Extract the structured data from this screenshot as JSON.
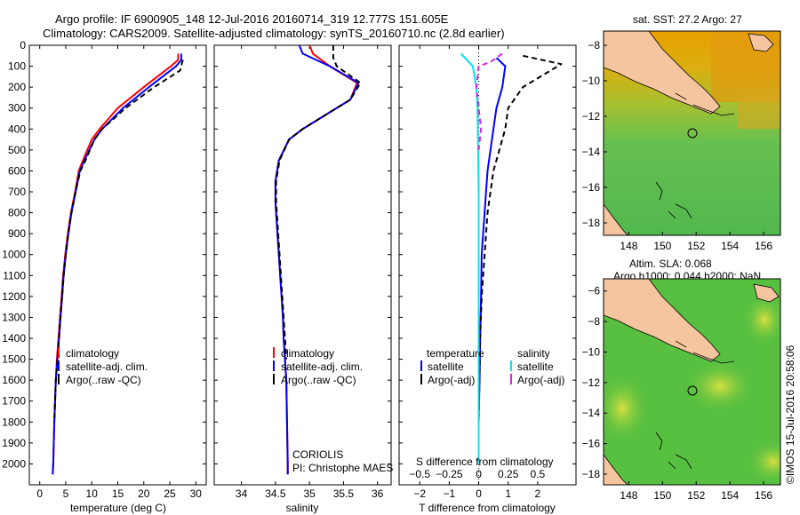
{
  "header": {
    "line1": "Argo profile: IF 6900905_148 12-Jul-2016 20160714_319 12.777S 151.605E",
    "line2": "Climatology: CARS2009. Satellite-adjusted climatology: synTS_20160710.nc (2.8d earlier)"
  },
  "colors": {
    "climatology": "#ff0000",
    "satellite": "#0000ff",
    "argo": "#000000",
    "sal_satellite": "#00e5ee",
    "sal_argo": "#e020e0",
    "land": "#f5c59f"
  },
  "side_labels": {
    "sst": "sat. SST: 27.2 Argo: 27",
    "sla_line1": "Altim. SLA: 0.068",
    "sla_line2": "Argo h1000: 0.044 h2000: NaN",
    "credit": "©IMOS 15-Jul-2016 20:58:06"
  },
  "float_info": {
    "centre": "CORIOLIS",
    "pi": "PI: Christophe MAES"
  },
  "chart_data": [
    {
      "type": "line",
      "xlabel": "temperature (deg C)",
      "ylabel": "",
      "xlim": [
        -2,
        32
      ],
      "ylim": [
        2100,
        0
      ],
      "xticks": [
        0,
        5,
        10,
        15,
        20,
        25,
        30
      ],
      "yticks": [
        0,
        100,
        200,
        300,
        400,
        500,
        600,
        700,
        800,
        900,
        1000,
        1100,
        1200,
        1300,
        1400,
        1500,
        1600,
        1700,
        1800,
        1900,
        2000
      ],
      "legend": [
        "climatology",
        "satellite-adj. clim.",
        "Argo(..raw -QC)"
      ],
      "legend_position": "lower-center",
      "series": [
        {
          "name": "climatology",
          "color": "#ff0000",
          "x": [
            26.6,
            26.6,
            25.2,
            20.0,
            15.0,
            11.5,
            10.0,
            8.3,
            7.5,
            6.8,
            6.0,
            5.4,
            4.9,
            4.5,
            4.2,
            3.9,
            3.6,
            3.3,
            3.1,
            2.8,
            2.6,
            2.5
          ],
          "y": [
            40,
            70,
            100,
            200,
            300,
            400,
            450,
            550,
            600,
            700,
            800,
            900,
            1000,
            1100,
            1200,
            1300,
            1400,
            1500,
            1600,
            1800,
            2000,
            2050
          ]
        },
        {
          "name": "satellite-adj. clim.",
          "color": "#0000ff",
          "x": [
            27.2,
            27.2,
            26.2,
            21.0,
            16.0,
            12.0,
            10.5,
            8.6,
            7.7,
            6.9,
            6.1,
            5.5,
            5.0,
            4.6,
            4.3,
            4.0,
            3.7,
            3.4,
            3.1,
            2.8,
            2.6,
            2.5
          ],
          "y": [
            40,
            70,
            100,
            200,
            300,
            400,
            450,
            550,
            600,
            700,
            800,
            900,
            1000,
            1100,
            1200,
            1300,
            1400,
            1500,
            1600,
            1800,
            2000,
            2050
          ]
        },
        {
          "name": "Argo(..raw -QC)",
          "color": "#000000",
          "dash": true,
          "x": [
            27.5,
            27.0,
            22.0,
            16.5,
            12.0,
            10.5,
            8.8,
            7.8,
            6.9,
            6.1,
            5.5,
            5.0,
            4.6,
            4.3,
            4.0,
            3.7,
            3.4,
            3.1,
            2.8
          ],
          "y": [
            70,
            120,
            200,
            300,
            400,
            450,
            550,
            600,
            700,
            800,
            900,
            1000,
            1100,
            1200,
            1300,
            1400,
            1500,
            1600,
            1800
          ]
        }
      ]
    },
    {
      "type": "line",
      "xlabel": "salinity",
      "ylabel": "",
      "xlim": [
        33.6,
        36.2
      ],
      "ylim": [
        2100,
        0
      ],
      "xticks": [
        34,
        34.5,
        35,
        35.5,
        36
      ],
      "legend": [
        "climatology",
        "satellite-adj. clim.",
        "Argo(..raw -QC)"
      ],
      "legend_position": "lower-center",
      "series": [
        {
          "name": "climatology",
          "color": "#ff0000",
          "x": [
            35.0,
            35.05,
            35.3,
            35.7,
            35.6,
            35.2,
            34.9,
            34.7,
            34.55,
            34.5,
            34.5,
            34.52,
            34.55,
            34.57,
            34.59,
            34.61,
            34.62,
            34.64,
            34.66,
            34.67,
            34.68,
            34.68
          ],
          "y": [
            0,
            40,
            100,
            180,
            260,
            340,
            400,
            450,
            550,
            650,
            750,
            850,
            1000,
            1100,
            1200,
            1300,
            1400,
            1500,
            1600,
            1800,
            2000,
            2050
          ]
        },
        {
          "name": "satellite-adj. clim.",
          "color": "#0000ff",
          "x": [
            34.85,
            34.9,
            35.3,
            35.72,
            35.6,
            35.2,
            34.9,
            34.7,
            34.55,
            34.5,
            34.5,
            34.52,
            34.55,
            34.57,
            34.59,
            34.61,
            34.62,
            34.64,
            34.66,
            34.67,
            34.68,
            34.68
          ],
          "y": [
            0,
            40,
            100,
            180,
            260,
            340,
            400,
            450,
            550,
            650,
            750,
            850,
            1000,
            1100,
            1200,
            1300,
            1400,
            1500,
            1600,
            1800,
            2000,
            2050
          ]
        },
        {
          "name": "Argo(..raw -QC)",
          "color": "#000000",
          "dash": true,
          "x": [
            35.35,
            35.35,
            35.4,
            35.75,
            35.6,
            35.2,
            34.9,
            34.7,
            34.56,
            34.51,
            34.51,
            34.53,
            34.56,
            34.58,
            34.6,
            34.62,
            34.64,
            34.66
          ],
          "y": [
            0,
            60,
            100,
            180,
            260,
            340,
            400,
            450,
            550,
            650,
            750,
            850,
            1000,
            1100,
            1200,
            1300,
            1400,
            1500
          ]
        }
      ]
    },
    {
      "type": "line",
      "xlabel": "T difference from climatology",
      "xlabel_top": "S difference from climatology",
      "ylabel": "",
      "xlim": [
        -2.7,
        3.3
      ],
      "ylim": [
        2100,
        0
      ],
      "xticks": [
        -2,
        -1,
        0,
        1,
        2
      ],
      "xticks_top": [
        -0.5,
        -0.25,
        0,
        0.25,
        0.5
      ],
      "legend_titles": [
        "temperature",
        "salinity"
      ],
      "legend": [
        "satellite",
        "Argo(-adj)",
        "satellite",
        "Argo(-adj)"
      ],
      "legend_position": "lower-center",
      "series": [
        {
          "name": "satellite",
          "quantity": "temperature",
          "color": "#0000ff",
          "x": [
            0.6,
            0.9,
            0.8,
            0.6,
            0.5,
            0.4,
            0.3,
            0.25,
            0.2,
            0.15,
            0.1,
            0.08,
            0.05,
            0.03,
            0.0
          ],
          "y": [
            60,
            100,
            200,
            300,
            400,
            500,
            600,
            700,
            800,
            900,
            1000,
            1200,
            1400,
            1600,
            1800
          ]
        },
        {
          "name": "Argo(-adj)",
          "quantity": "temperature",
          "color": "#000000",
          "dash": true,
          "x": [
            1.5,
            2.8,
            1.5,
            1.0,
            0.9,
            0.7,
            0.5,
            0.4,
            0.3,
            0.25,
            0.2,
            0.1,
            0.05,
            0.0
          ],
          "y": [
            50,
            90,
            200,
            300,
            400,
            500,
            600,
            700,
            800,
            900,
            1000,
            1200,
            1400,
            1800
          ]
        },
        {
          "name": "satellite",
          "quantity": "salinity",
          "color": "#00e5ee",
          "x": [
            -0.15,
            -0.05,
            -0.02,
            -0.01,
            -0.005,
            0.0,
            0.0,
            0.0,
            0.0
          ],
          "y": [
            40,
            100,
            200,
            300,
            500,
            700,
            1000,
            1500,
            2000
          ]
        },
        {
          "name": "Argo(-adj)",
          "quantity": "salinity",
          "color": "#e020e0",
          "dash": true,
          "x": [
            0.2,
            0.1,
            0.0,
            -0.02,
            0.0,
            0.02,
            0.0
          ],
          "y": [
            40,
            80,
            100,
            200,
            300,
            400,
            500
          ]
        }
      ]
    },
    {
      "type": "heatmap",
      "title": "sat. SST: 27.2 Argo: 27",
      "xlim": [
        146.5,
        157
      ],
      "ylim": [
        -18.7,
        -7.2
      ],
      "xticks": [
        148,
        150,
        152,
        154,
        156
      ],
      "yticks": [
        -8,
        -10,
        -12,
        -14,
        -16,
        -18
      ],
      "marker": {
        "lon": 151.605,
        "lat": -12.777
      }
    },
    {
      "type": "heatmap",
      "title": "Altim. SLA: 0.068 / Argo h1000: 0.044 h2000: NaN",
      "xlim": [
        146.5,
        157
      ],
      "ylim": [
        -18.7,
        -5.2
      ],
      "xticks": [
        148,
        150,
        152,
        154,
        156
      ],
      "yticks": [
        -6,
        -8,
        -10,
        -12,
        -14,
        -16,
        -18
      ],
      "marker": {
        "lon": 151.605,
        "lat": -12.777
      }
    }
  ]
}
